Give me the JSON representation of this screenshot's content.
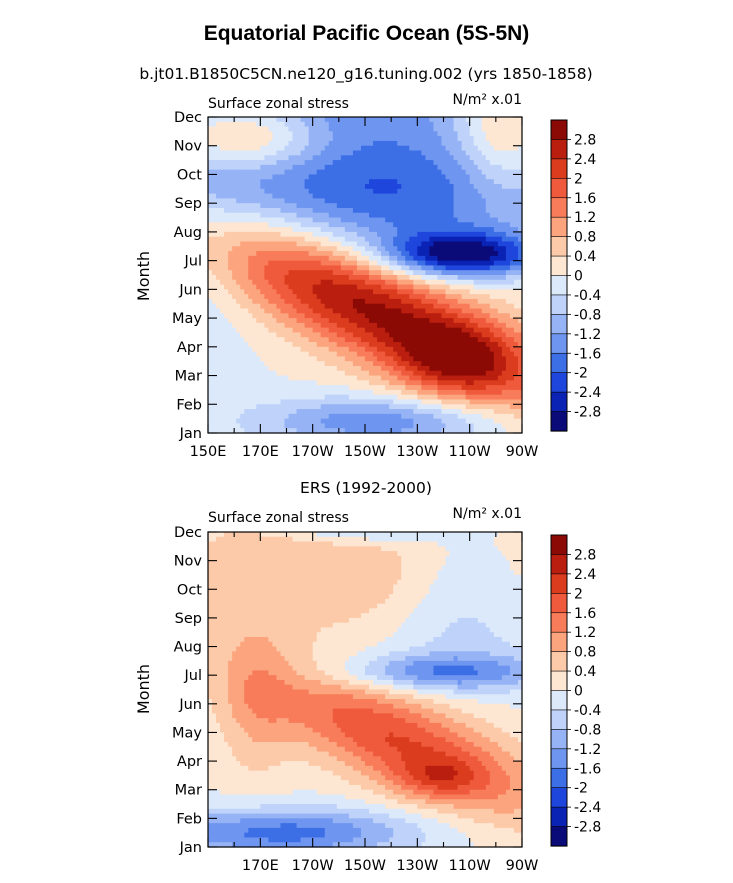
{
  "figure": {
    "title": "Equatorial Pacific Ocean (5S-5N)"
  },
  "colors": {
    "levels": [
      -3.2,
      -2.8,
      -2.4,
      -2,
      -1.6,
      -1.2,
      -0.8,
      -0.4,
      0,
      0.4,
      0.8,
      1.2,
      1.6,
      2,
      2.4,
      2.8,
      3.2
    ],
    "palette": [
      "#0a0a78",
      "#0a23b4",
      "#1e46dc",
      "#3c6ee6",
      "#6e96f0",
      "#96b4f5",
      "#bed2fa",
      "#dce9fb",
      "#fde6d2",
      "#fccaa8",
      "#fba47e",
      "#f87c5a",
      "#f05a3c",
      "#dc3c1e",
      "#b91e0f",
      "#8c0a05"
    ]
  },
  "chart_data": [
    {
      "type": "heatmap",
      "subtitle": "b.jt01.B1850C5CN.ne120_g16.tuning.002 (yrs 1850-1858)",
      "left_label": "Surface zonal stress",
      "right_label": "N/m² x.01",
      "ylabel": "Month",
      "xlim": [
        150,
        270
      ],
      "x_ticks": [
        150,
        170,
        190,
        210,
        230,
        250,
        270
      ],
      "x_tick_labels": [
        "150E",
        "170E",
        "170W",
        "150W",
        "130W",
        "110W",
        "90W"
      ],
      "y_tick_labels": [
        "Jan",
        "Feb",
        "Mar",
        "Apr",
        "May",
        "Jun",
        "Jul",
        "Aug",
        "Sep",
        "Oct",
        "Nov",
        "Dec"
      ],
      "colorbar_labels": [
        "2.8",
        "2.4",
        "2",
        "1.6",
        "1.2",
        "0.8",
        "0.4",
        "0",
        "-0.4",
        "-0.8",
        "-1.2",
        "-1.6",
        "-2",
        "-2.4",
        "-2.8"
      ],
      "features": [
        {
          "lon": 215,
          "month": 4.2,
          "amp": 2.9,
          "slon": 48,
          "smon": 1.3,
          "tilt": -0.038
        },
        {
          "lon": 245,
          "month": 2.5,
          "amp": 1.4,
          "slon": 16,
          "smon": 0.9
        },
        {
          "lon": 247,
          "month": 6.2,
          "amp": -2.9,
          "slon": 20,
          "smon": 0.55
        },
        {
          "lon": 225,
          "month": 7.6,
          "amp": -1.2,
          "slon": 45,
          "smon": 1.2
        },
        {
          "lon": 200,
          "month": 9.4,
          "amp": -1.5,
          "slon": 65,
          "smon": 1.3
        },
        {
          "lon": 165,
          "month": 10.2,
          "amp": 1.7,
          "slon": 20,
          "smon": 0.8
        },
        {
          "lon": 262,
          "month": 10.4,
          "amp": 1.2,
          "slon": 12,
          "smon": 1.5
        },
        {
          "lon": 215,
          "month": 0.4,
          "amp": -1.5,
          "slon": 32,
          "smon": 0.6
        },
        {
          "lon": 205,
          "month": 11.3,
          "amp": -0.9,
          "slon": 40,
          "smon": 0.8
        },
        {
          "lon": 150,
          "month": 6.5,
          "amp": -0.4,
          "slon": 15,
          "smon": 3
        }
      ]
    },
    {
      "type": "heatmap",
      "subtitle": "ERS (1992-2000)",
      "left_label": "Surface zonal stress",
      "right_label": "N/m² x.01",
      "ylabel": "Month",
      "xlim": [
        150,
        270
      ],
      "x_ticks": [
        170,
        190,
        210,
        230,
        250,
        270
      ],
      "x_tick_labels": [
        "170E",
        "170W",
        "150W",
        "130W",
        "110W",
        "90W"
      ],
      "y_tick_labels": [
        "Jan",
        "Feb",
        "Mar",
        "Apr",
        "May",
        "Jun",
        "Jul",
        "Aug",
        "Sep",
        "Oct",
        "Nov",
        "Dec"
      ],
      "colorbar_labels": [
        "2.8",
        "2.4",
        "2",
        "1.6",
        "1.2",
        "0.8",
        "0.4",
        "0",
        "-0.4",
        "-0.8",
        "-1.2",
        "-1.6",
        "-2",
        "-2.4",
        "-2.8"
      ],
      "features": [
        {
          "lon": 225,
          "month": 3.6,
          "amp": 2.0,
          "slon": 38,
          "smon": 1.2,
          "tilt": -0.035
        },
        {
          "lon": 238,
          "month": 2.4,
          "amp": 0.9,
          "slon": 12,
          "smon": 0.5
        },
        {
          "lon": 178,
          "month": 0.5,
          "amp": -1.8,
          "slon": 35,
          "smon": 0.6
        },
        {
          "lon": 240,
          "month": 6.1,
          "amp": -1.5,
          "slon": 28,
          "smon": 0.45
        },
        {
          "lon": 210,
          "month": 11.4,
          "amp": -1.6,
          "slon": 20,
          "smon": 0.45
        },
        {
          "lon": 195,
          "month": 9.2,
          "amp": 0.8,
          "slon": 45,
          "smon": 2.3
        },
        {
          "lon": 245,
          "month": 8.8,
          "amp": -0.55,
          "slon": 16,
          "smon": 1.8
        },
        {
          "lon": 225,
          "month": 7.0,
          "amp": -0.4,
          "slon": 60,
          "smon": 1.2
        },
        {
          "lon": 168,
          "month": 5.0,
          "amp": 0.7,
          "slon": 10,
          "smon": 2
        }
      ]
    }
  ]
}
